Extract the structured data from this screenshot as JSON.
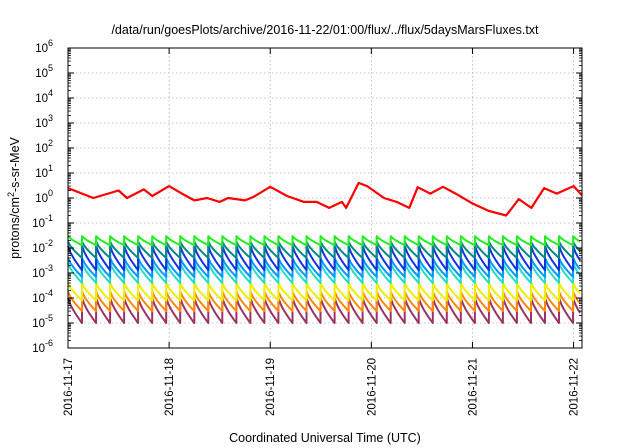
{
  "chart_data": {
    "type": "line",
    "title": "/data/run/goesPlots/archive/2016-11-22/01:00/flux/../flux/5daysMarsFluxes.txt",
    "xlabel": "Coordinated Universal Time (UTC)",
    "ylabel": "protons/cm2-s-sr-MeV",
    "ylabel_parts": {
      "before": "protons/cm",
      "sup": "2",
      "after": "-s-sr-MeV"
    },
    "yscale": "log",
    "ylim": [
      1e-06,
      1000000.0
    ],
    "ytick_labels": [
      {
        "base": "10",
        "exp": "-6"
      },
      {
        "base": "10",
        "exp": "-5"
      },
      {
        "base": "10",
        "exp": "-4"
      },
      {
        "base": "10",
        "exp": "-3"
      },
      {
        "base": "10",
        "exp": "-2"
      },
      {
        "base": "10",
        "exp": "-1"
      },
      {
        "base": "10",
        "exp": "0"
      },
      {
        "base": "10",
        "exp": "1"
      },
      {
        "base": "10",
        "exp": "2"
      },
      {
        "base": "10",
        "exp": "3"
      },
      {
        "base": "10",
        "exp": "4"
      },
      {
        "base": "10",
        "exp": "5"
      },
      {
        "base": "10",
        "exp": "6"
      }
    ],
    "xlim": [
      "2016-11-17",
      "2016-11-22 02:00"
    ],
    "xtick_labels": [
      "2016-11-17",
      "2016-11-18",
      "2016-11-19",
      "2016-11-20",
      "2016-11-21",
      "2016-11-22"
    ],
    "grid": true,
    "series": [
      {
        "color": "#ff0000",
        "x": [
          "2016-11-17 00:00",
          "2016-11-17 06:00",
          "2016-11-17 12:00",
          "2016-11-17 14:00",
          "2016-11-17 18:00",
          "2016-11-17 20:00",
          "2016-11-18 00:00",
          "2016-11-18 03:00",
          "2016-11-18 06:00",
          "2016-11-18 09:00",
          "2016-11-18 12:00",
          "2016-11-18 14:00",
          "2016-11-18 18:00",
          "2016-11-18 20:00",
          "2016-11-19 00:00",
          "2016-11-19 04:00",
          "2016-11-19 08:00",
          "2016-11-19 11:00",
          "2016-11-19 14:00",
          "2016-11-19 17:00",
          "2016-11-19 18:00",
          "2016-11-19 21:00",
          "2016-11-19 23:00",
          "2016-11-20 03:00",
          "2016-11-20 06:00",
          "2016-11-20 09:00",
          "2016-11-20 11:00",
          "2016-11-20 14:00",
          "2016-11-20 17:00",
          "2016-11-20 20:00",
          "2016-11-21 00:00",
          "2016-11-21 04:00",
          "2016-11-21 08:00",
          "2016-11-21 11:00",
          "2016-11-21 14:00",
          "2016-11-21 17:00",
          "2016-11-21 20:00",
          "2016-11-22 00:00",
          "2016-11-22 02:00"
        ],
        "y": [
          2.5,
          1.0,
          2.0,
          1.0,
          2.2,
          1.2,
          3.0,
          1.5,
          0.8,
          1.0,
          0.7,
          1.0,
          0.8,
          1.1,
          2.8,
          1.2,
          0.7,
          0.7,
          0.4,
          0.7,
          0.4,
          4.0,
          3.0,
          1.0,
          0.7,
          0.4,
          2.7,
          1.5,
          2.8,
          1.5,
          0.6,
          0.3,
          0.2,
          0.9,
          0.4,
          2.5,
          1.5,
          3.0,
          1.3
        ]
      },
      {
        "color": "#22ee22",
        "period_hours": 3.33,
        "max": 0.03,
        "min": 0.013
      },
      {
        "color": "#008888",
        "period_hours": 3.33,
        "max": 0.018,
        "min": 0.004
      },
      {
        "color": "#1133dd",
        "period_hours": 3.33,
        "max": 0.012,
        "min": 0.0013
      },
      {
        "color": "#0099ff",
        "period_hours": 3.33,
        "max": 0.004,
        "min": 0.0007
      },
      {
        "color": "#22ddcc",
        "period_hours": 3.33,
        "max": 0.0025,
        "min": 0.0004
      },
      {
        "color": "#eeee00",
        "period_hours": 3.33,
        "max": 0.0004,
        "min": 8e-05
      },
      {
        "color": "#ff8800",
        "period_hours": 3.33,
        "max": 0.00018,
        "min": 3e-05
      },
      {
        "color": "#993366",
        "period_hours": 3.33,
        "max": 0.0001,
        "min": 1e-05
      }
    ]
  }
}
